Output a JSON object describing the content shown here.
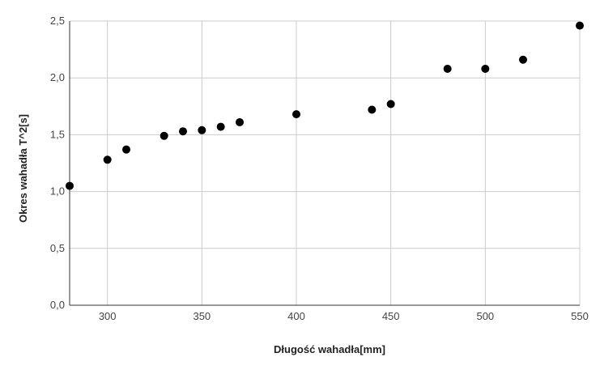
{
  "chart_data": {
    "type": "scatter",
    "title": "",
    "xlabel": "Długość wahadła[mm]",
    "ylabel": "Okres wahadła T^2[s]",
    "xlim": [
      280,
      550
    ],
    "ylim": [
      0,
      2.5
    ],
    "x_ticks": [
      300,
      350,
      400,
      450,
      500,
      550
    ],
    "y_ticks": [
      0,
      0.5,
      1.0,
      1.5,
      2.0,
      2.5
    ],
    "x_tick_labels": [
      "300",
      "350",
      "400",
      "450",
      "500",
      "550"
    ],
    "y_tick_labels": [
      "0,0",
      "0,5",
      "1,0",
      "1,5",
      "2,0",
      "2,5"
    ],
    "grid": true,
    "legend": "none",
    "marker_color": "#000000",
    "grid_color": "#cccccc",
    "points": [
      {
        "x": 280,
        "y": 1.05
      },
      {
        "x": 300,
        "y": 1.28
      },
      {
        "x": 310,
        "y": 1.37
      },
      {
        "x": 330,
        "y": 1.49
      },
      {
        "x": 340,
        "y": 1.53
      },
      {
        "x": 350,
        "y": 1.54
      },
      {
        "x": 360,
        "y": 1.57
      },
      {
        "x": 370,
        "y": 1.61
      },
      {
        "x": 400,
        "y": 1.68
      },
      {
        "x": 440,
        "y": 1.72
      },
      {
        "x": 450,
        "y": 1.77
      },
      {
        "x": 480,
        "y": 2.08
      },
      {
        "x": 500,
        "y": 2.08
      },
      {
        "x": 520,
        "y": 2.16
      },
      {
        "x": 550,
        "y": 2.46
      }
    ]
  }
}
